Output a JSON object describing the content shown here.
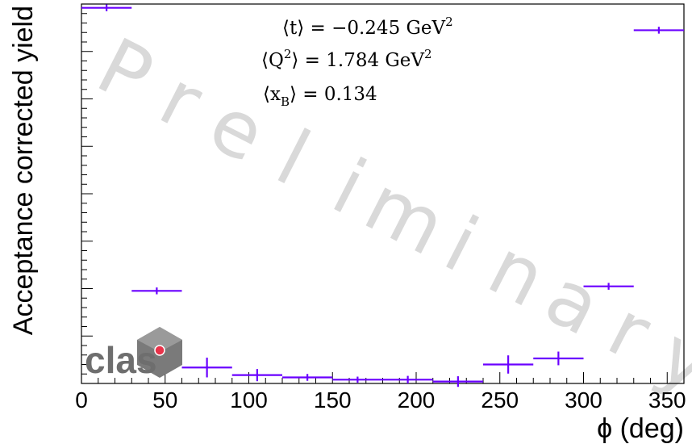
{
  "chart_data": {
    "type": "scatter",
    "xlabel": "ϕ (deg)",
    "ylabel": "Acceptance corrected yield",
    "xlim": [
      0,
      360
    ],
    "ylim": [
      0,
      100
    ],
    "x_ticks": [
      0,
      50,
      100,
      150,
      200,
      250,
      300,
      350
    ],
    "grid": false,
    "series": [
      {
        "x": [
          15,
          45,
          75,
          105,
          135,
          165,
          195,
          225,
          255,
          285,
          315,
          345
        ],
        "x_halfwidth": 15,
        "values": [
          99.0,
          24.4,
          4.2,
          2.2,
          1.6,
          1.0,
          1.0,
          0.5,
          5.0,
          6.6,
          25.6,
          93.1
        ],
        "errors": [
          0.9,
          0.9,
          2.6,
          1.6,
          0.9,
          0.8,
          1.0,
          1.4,
          2.4,
          1.8,
          0.9,
          0.9
        ],
        "color": "#6a00ff"
      }
    ],
    "annotations": [
      "⟨t⟩ = −0.245 GeV²",
      "⟨Q²⟩ = 1.784 GeV²",
      "⟨x_B⟩ = 0.134"
    ],
    "watermark": "Preliminary"
  },
  "labels": {
    "ylabel": "Acceptance corrected yield",
    "xlabel": "ϕ (deg)",
    "x_ticks": [
      "0",
      "50",
      "100",
      "150",
      "200",
      "250",
      "300",
      "350"
    ],
    "logo_text": "clas"
  },
  "kinematics": {
    "t_lhs": "⟨t⟩ = −0.245 GeV",
    "t_sup": "2",
    "q2_lhs_open": "⟨Q",
    "q2_lhs_sup": "2",
    "q2_rhs": "⟩ = 1.784 GeV",
    "q2_rhs_sup": "2",
    "xb_open": "⟨x",
    "xb_sub": "B",
    "xb_rhs": "⟩ = 0.134"
  },
  "watermark_letters": [
    "P",
    "r",
    "e",
    "l",
    "i",
    "m",
    "i",
    "n",
    "a",
    "r",
    "y"
  ],
  "colors": {
    "series": "#6a00ff",
    "watermark": "#d9d9d9",
    "logo_grey": "#6e6e6e",
    "logo_red": "#e8334a"
  }
}
